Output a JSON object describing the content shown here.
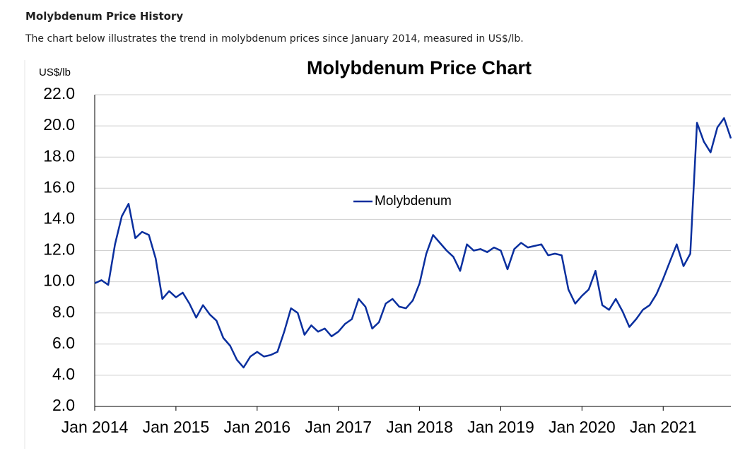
{
  "page_title": "Molybdenum Price History",
  "intro": "The chart below illustrates the trend in molybdenum  prices since January 2014, measured in US$/lb.",
  "chart_data": {
    "type": "line",
    "title": "Molybdenum Price Chart",
    "y_label": "US$/lb",
    "x": [
      "2014-01",
      "2014-02",
      "2014-03",
      "2014-04",
      "2014-05",
      "2014-06",
      "2014-07",
      "2014-08",
      "2014-09",
      "2014-10",
      "2014-11",
      "2014-12",
      "2015-01",
      "2015-02",
      "2015-03",
      "2015-04",
      "2015-05",
      "2015-06",
      "2015-07",
      "2015-08",
      "2015-09",
      "2015-10",
      "2015-11",
      "2015-12",
      "2016-01",
      "2016-02",
      "2016-03",
      "2016-04",
      "2016-05",
      "2016-06",
      "2016-07",
      "2016-08",
      "2016-09",
      "2016-10",
      "2016-11",
      "2016-12",
      "2017-01",
      "2017-02",
      "2017-03",
      "2017-04",
      "2017-05",
      "2017-06",
      "2017-07",
      "2017-08",
      "2017-09",
      "2017-10",
      "2017-11",
      "2017-12",
      "2018-01",
      "2018-02",
      "2018-03",
      "2018-04",
      "2018-05",
      "2018-06",
      "2018-07",
      "2018-08",
      "2018-09",
      "2018-10",
      "2018-11",
      "2018-12",
      "2019-01",
      "2019-02",
      "2019-03",
      "2019-04",
      "2019-05",
      "2019-06",
      "2019-07",
      "2019-08",
      "2019-09",
      "2019-10",
      "2019-11",
      "2019-12",
      "2020-01",
      "2020-02",
      "2020-03",
      "2020-04",
      "2020-05",
      "2020-06",
      "2020-07",
      "2020-08",
      "2020-09",
      "2020-10",
      "2020-11",
      "2020-12",
      "2021-01",
      "2021-02",
      "2021-03",
      "2021-04",
      "2021-05",
      "2021-06",
      "2021-07",
      "2021-08",
      "2021-09",
      "2021-10",
      "2021-11"
    ],
    "series": [
      {
        "name": "Molybdenum",
        "color": "#0a2f9e",
        "values": [
          9.9,
          10.1,
          9.8,
          12.4,
          14.2,
          15.0,
          12.8,
          13.2,
          13.0,
          11.5,
          8.9,
          9.4,
          9.0,
          9.3,
          8.6,
          7.7,
          8.5,
          7.9,
          7.5,
          6.4,
          5.9,
          5.0,
          4.5,
          5.2,
          5.5,
          5.2,
          5.3,
          5.5,
          6.8,
          8.3,
          8.0,
          6.6,
          7.2,
          6.8,
          7.0,
          6.5,
          6.8,
          7.3,
          7.6,
          8.9,
          8.4,
          7.0,
          7.4,
          8.6,
          8.9,
          8.4,
          8.3,
          8.8,
          9.9,
          11.8,
          13.0,
          12.5,
          12.0,
          11.6,
          10.7,
          12.4,
          12.0,
          12.1,
          11.9,
          12.2,
          12.0,
          10.8,
          12.1,
          12.5,
          12.2,
          12.3,
          12.4,
          11.7,
          11.8,
          11.7,
          9.5,
          8.6,
          9.1,
          9.5,
          10.7,
          8.5,
          8.2,
          8.9,
          8.1,
          7.1,
          7.6,
          8.2,
          8.5,
          9.2,
          10.2,
          11.3,
          12.4,
          11.0,
          11.8,
          20.2,
          19.0,
          18.3,
          19.9,
          20.5,
          19.2
        ]
      }
    ],
    "xlim": [
      "2014-01",
      "2021-11"
    ],
    "xticks": [
      {
        "value": "2014-01",
        "label": "Jan 2014"
      },
      {
        "value": "2015-01",
        "label": "Jan 2015"
      },
      {
        "value": "2016-01",
        "label": "Jan 2016"
      },
      {
        "value": "2017-01",
        "label": "Jan 2017"
      },
      {
        "value": "2018-01",
        "label": "Jan 2018"
      },
      {
        "value": "2019-01",
        "label": "Jan 2019"
      },
      {
        "value": "2020-01",
        "label": "Jan 2020"
      },
      {
        "value": "2021-01",
        "label": "Jan 2021"
      }
    ],
    "ylim": [
      2,
      22
    ],
    "yticks": [
      {
        "value": 2,
        "label": "2.0"
      },
      {
        "value": 4,
        "label": "4.0"
      },
      {
        "value": 6,
        "label": "6.0"
      },
      {
        "value": 8,
        "label": "8.0"
      },
      {
        "value": 10,
        "label": "10.0"
      },
      {
        "value": 12,
        "label": "12.0"
      },
      {
        "value": 14,
        "label": "14.0"
      },
      {
        "value": 16,
        "label": "16.0"
      },
      {
        "value": 18,
        "label": "18.0"
      },
      {
        "value": 20,
        "label": "20.0"
      },
      {
        "value": 22,
        "label": "22.0"
      }
    ],
    "grid": true,
    "legend": "center"
  }
}
